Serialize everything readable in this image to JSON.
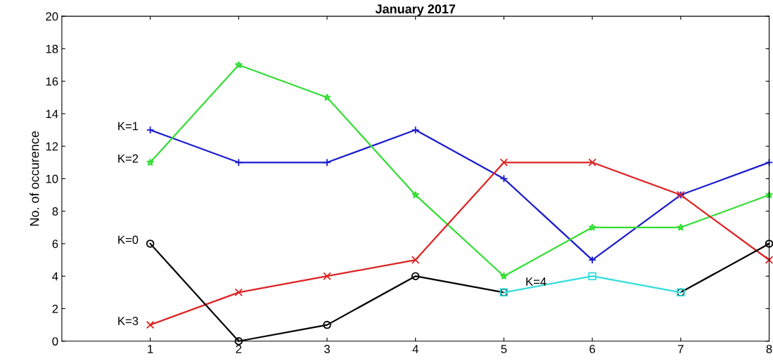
{
  "chart_data": {
    "type": "line",
    "title": "January 2017",
    "ylabel": "No. of occurence",
    "x": [
      1,
      2,
      3,
      4,
      5,
      6,
      7,
      8
    ],
    "xlim": [
      0,
      8
    ],
    "xticks": [
      1,
      2,
      3,
      4,
      5,
      6,
      7,
      8
    ],
    "ylim": [
      0,
      20
    ],
    "yticks": [
      0,
      2,
      4,
      6,
      8,
      10,
      12,
      14,
      16,
      18,
      20
    ],
    "grid": false,
    "legend": false,
    "series": [
      {
        "name": "K=1",
        "color": "#1a1acc",
        "marker": "cross",
        "values": [
          13,
          11,
          11,
          13,
          10,
          5,
          9,
          11
        ]
      },
      {
        "name": "K=2",
        "color": "#33dd33",
        "marker": "star",
        "values": [
          11,
          17,
          15,
          9,
          4,
          7,
          7,
          9
        ]
      },
      {
        "name": "K=3",
        "color": "#dd2222",
        "marker": "x",
        "values": [
          1,
          3,
          4,
          5,
          11,
          11,
          9,
          5
        ]
      },
      {
        "name": "K=0",
        "color": "#000000",
        "marker": "circle",
        "values": [
          6,
          0,
          1,
          4,
          3,
          null,
          3,
          6
        ]
      },
      {
        "name": "K=4",
        "color": "#33dddd",
        "marker": "square",
        "values": [
          null,
          null,
          null,
          null,
          3,
          4,
          3,
          null
        ]
      }
    ]
  }
}
